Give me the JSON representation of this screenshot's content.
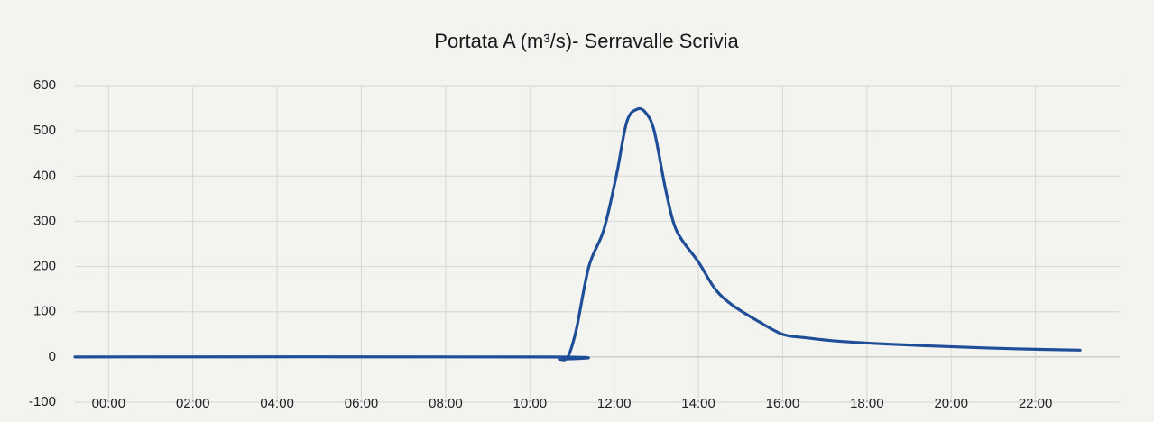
{
  "chart_data": {
    "type": "line",
    "title": "Portata A (m³/s)- Serravalle Scrivia",
    "x": [
      -0.8,
      10.5,
      10.7,
      10.9,
      11.1,
      11.4,
      11.75,
      12.05,
      12.3,
      12.55,
      12.75,
      12.95,
      13.2,
      13.4,
      13.6,
      14.0,
      14.4,
      14.8,
      15.4,
      16.0,
      16.5,
      17.3,
      18.6,
      20.2,
      21.5,
      23.06
    ],
    "series": [
      {
        "name": "Portata A",
        "color": "#1f4e99",
        "values": [
          0,
          0,
          -5,
          0,
          60,
          200,
          280,
          400,
          520,
          548,
          540,
          500,
          380,
          300,
          260,
          210,
          150,
          115,
          80,
          50,
          43,
          35,
          28,
          22,
          18,
          15
        ]
      }
    ],
    "xlim": [
      -0.8,
      24
    ],
    "xticks": [
      {
        "value": 0,
        "label": "00:00"
      },
      {
        "value": 2,
        "label": "02:00"
      },
      {
        "value": 4,
        "label": "04:00"
      },
      {
        "value": 6,
        "label": "06:00"
      },
      {
        "value": 8,
        "label": "08:00"
      },
      {
        "value": 10,
        "label": "10:00"
      },
      {
        "value": 12,
        "label": "12:00"
      },
      {
        "value": 14,
        "label": "14:00"
      },
      {
        "value": 16,
        "label": "16:00"
      },
      {
        "value": 18,
        "label": "18:00"
      },
      {
        "value": 20,
        "label": "20:00"
      },
      {
        "value": 22,
        "label": "22:00"
      }
    ],
    "ylim": [
      -100,
      600
    ],
    "yticks": [
      -100,
      0,
      100,
      200,
      300,
      400,
      500,
      600
    ],
    "grid": true
  }
}
